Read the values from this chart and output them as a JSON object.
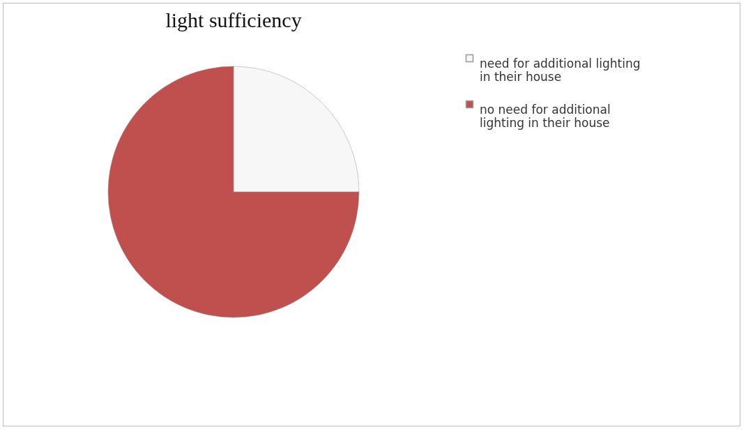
{
  "chart_data": {
    "type": "pie",
    "title": "light sufficiency",
    "categories": [
      "need for additional lighting in their house",
      "no need for additional lighting in their house"
    ],
    "values": [
      25,
      75
    ],
    "colors": [
      "#f7f7f7",
      "#c0504d"
    ],
    "legend": "right"
  }
}
